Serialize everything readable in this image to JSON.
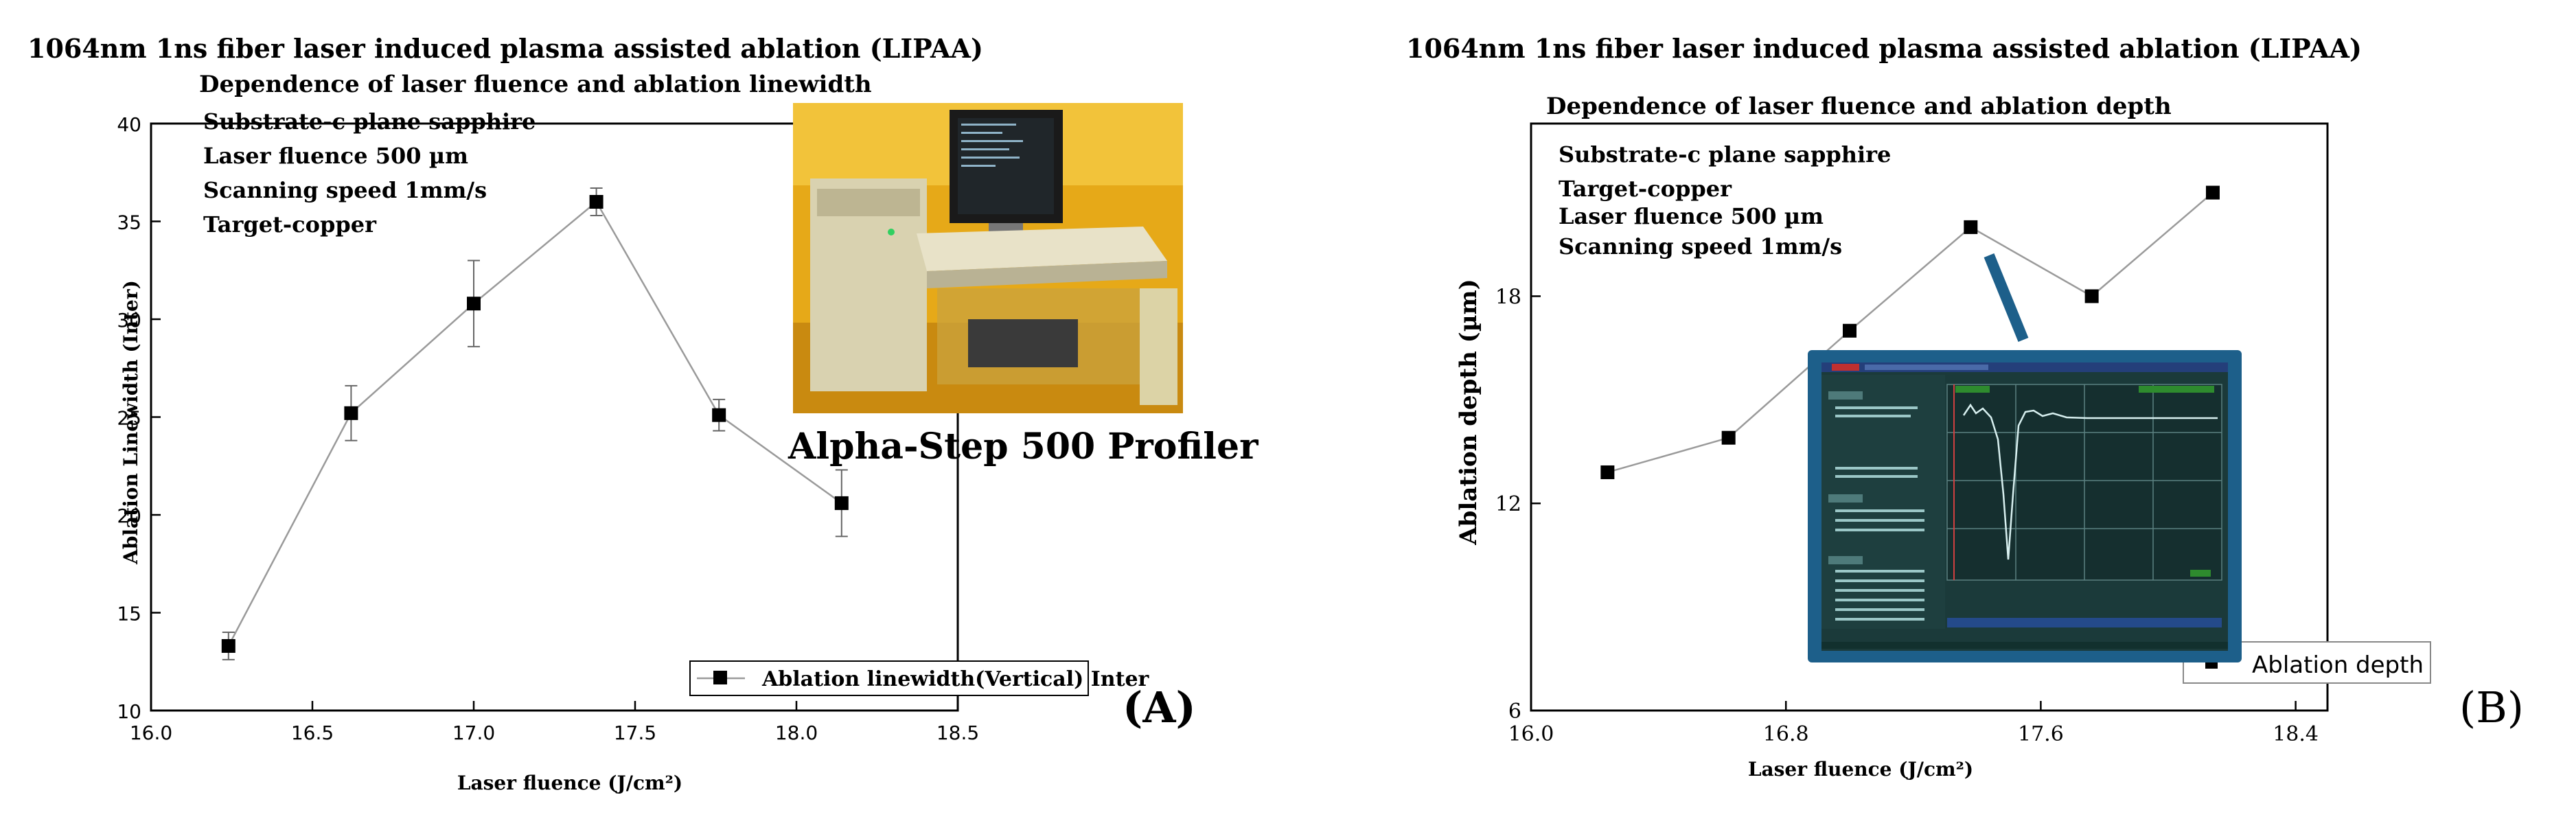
{
  "chart_data": [
    {
      "type": "line",
      "panel_label": "(A)",
      "title": "1064nm 1ns fiber laser induced plasma assisted ablation (LIPAA)",
      "subtitle": "Dependence of laser fluence and ablation linewidth",
      "annotations": [
        "Substrate-c plane sapphire",
        "Laser fluence  500 µm",
        "Scanning speed 1mm/s",
        "Target-copper"
      ],
      "photo_caption": "Alpha-Step  500 Profiler",
      "xlabel": "Laser fluence (J/cm²)",
      "ylabel": "Ablation Linewidth (Inter)",
      "xlim": [
        16.0,
        18.5
      ],
      "ylim": [
        10,
        40
      ],
      "x_ticks": [
        "16.0",
        "16.5",
        "17.0",
        "17.5",
        "18.0",
        "18.5"
      ],
      "y_ticks": [
        "10",
        "15",
        "20",
        "25",
        "30",
        "35",
        "40"
      ],
      "series": [
        {
          "name": "Ablation linewidth(Vertical) Inter",
          "x": [
            16.24,
            16.62,
            17.0,
            17.38,
            17.76,
            18.14
          ],
          "y": [
            13.3,
            25.2,
            30.8,
            36.0,
            25.1,
            20.6
          ],
          "error": [
            0.7,
            1.4,
            2.2,
            0.7,
            0.8,
            1.7
          ]
        }
      ],
      "legend_position": "bottom-right",
      "grid": false
    },
    {
      "type": "line",
      "panel_label": "(B)",
      "title": "1064nm 1ns fiber laser induced plasma assisted ablation (LIPAA)",
      "subtitle": "Dependence of laser fluence and ablation depth",
      "annotations": [
        "Substrate-c plane sapphire",
        "Target-copper",
        " Laser fluence  500 µm",
        "Scanning speed 1mm/s"
      ],
      "xlabel": "Laser fluence (J/cm²)",
      "ylabel": "Ablation depth (µm)",
      "xlim": [
        16.0,
        18.5
      ],
      "ylim": [
        6,
        23
      ],
      "x_ticks": [
        "16.0",
        "16.8",
        "17.6",
        "18.4"
      ],
      "y_ticks": [
        "6",
        "12",
        "18"
      ],
      "series": [
        {
          "name": "Ablation depth",
          "x": [
            16.24,
            16.62,
            17.0,
            17.38,
            17.76,
            18.14
          ],
          "y": [
            12.9,
            13.9,
            17.0,
            20.0,
            18.0,
            21.0
          ]
        }
      ],
      "legend_position": "bottom-right",
      "grid": false
    }
  ],
  "colors": {
    "line": "#9a9a9a",
    "marker": "#000000",
    "inset_frame": "#1d5f8a",
    "photo_bg": "#e6a918",
    "screen_bg": "#1b3a3a"
  }
}
